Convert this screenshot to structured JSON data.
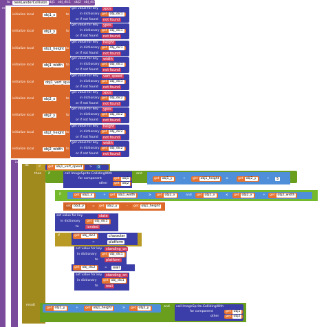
{
  "header": {
    "to_label": "to",
    "procedure_name": "newLanderCollision",
    "params": [
      "obj1",
      "obj_dic1",
      "obj2",
      "obj_dic2"
    ]
  },
  "result_label": "result",
  "in_label": "in",
  "do_label": "do",
  "if_label": "if",
  "then_label": "then",
  "else_if_label": "else if",
  "result_return_label": "result",
  "and_label": "and",
  "locals": [
    {
      "label": "initialize local",
      "name": "obj1_x",
      "to": "to",
      "key": "xpos",
      "dict": "obj_dic1",
      "nf": "not found"
    },
    {
      "label": "initialize local",
      "name": "obj1_y",
      "to": "to",
      "key": "ypos",
      "dict": "obj_dic1",
      "nf": "not found"
    },
    {
      "label": "initialize local",
      "name": "obj1_height",
      "to": "to",
      "key": "height",
      "dict": "obj_dic1",
      "nf": "not found"
    },
    {
      "label": "initialize local",
      "name": "obj1_width",
      "to": "to",
      "key": "width",
      "dict": "obj_dic1",
      "nf": "not found"
    },
    {
      "label": "initialize local",
      "name": "obj1_vert_speed",
      "to": "to",
      "key": "vert_speed",
      "dict": "obj_dic1",
      "nf": "not found"
    },
    {
      "label": "initialize local",
      "name": "obj2_x",
      "to": "to",
      "key": "xpos",
      "dict": "obj_dic2",
      "nf": "not found"
    },
    {
      "label": "initialize local",
      "name": "obj2_y",
      "to": "to",
      "key": "ypos",
      "dict": "obj_dic2",
      "nf": "not found"
    },
    {
      "label": "initialize local",
      "name": "obj2_height",
      "to": "to",
      "key": "height",
      "dict": "obj_dic2",
      "nf": "not found"
    },
    {
      "label": "initialize local",
      "name": "obj2_width",
      "to": "to",
      "key": "width",
      "dict": "obj_dic2",
      "nf": "not found"
    }
  ],
  "get_value": {
    "get_value_for_key": "get value for key",
    "in_dictionary": "in dictionary",
    "or_if_not_found": "or if not found"
  },
  "body": {
    "cond1": {
      "get": "get",
      "var": "obj1_vert_speed",
      "op": ">",
      "num": "0"
    },
    "colliding1": {
      "call": "call ImageSprite.CollidingWith",
      "for_component": "for component",
      "other": "other",
      "comp_var": "obj1",
      "other_var": "obj2"
    },
    "cmp1": {
      "var_a": "obj1_y",
      "plus": "+",
      "var_b": "obj1_height",
      "op": "≤",
      "var_c": "obj2_y",
      "plus2": "+",
      "num": "5"
    },
    "cmp2": {
      "var_a": "obj1_x",
      "plus": "+",
      "var_b": "obj1_width",
      "op": "≥",
      "var_c": "obj2_x",
      "op2": "and",
      "var_d": "obj1_x",
      "op3": "≤",
      "var_e": "obj2_x",
      "plus2": "+",
      "var_f": "obj2_width"
    },
    "then_set": {
      "var": "obj1_y",
      "op": "=",
      "var_b": "obj2_y",
      "minus": "-",
      "var_c": "obj1_height"
    },
    "set_value": {
      "label": "set value for key",
      "key": "state",
      "in_dictionary": "in dictionary",
      "dict": "obj_dic1",
      "to": "to",
      "val": "landed"
    },
    "inner_if": {
      "get": "get",
      "dict": "obj_dic2",
      "key": "character",
      "op": "=",
      "val": "platform"
    },
    "inner_then": {
      "label": "set value for key",
      "key": "standing_on",
      "in_dictionary": "in dictionary",
      "dict": "obj_dic1",
      "to": "to",
      "val": "platform"
    },
    "inner_else_if": {
      "get": "get",
      "dict": "obj_dic2",
      "op": "=",
      "val": "wall"
    },
    "inner_then2": {
      "label": "set value for key",
      "key": "standing_on",
      "in_dictionary": "in dictionary",
      "dict": "obj_dic1",
      "to": "to",
      "val": "wall"
    },
    "result_expr": {
      "var_a": "obj1_y",
      "plus": "+",
      "var_b": "obj1_height",
      "op": "≥",
      "var_c": "obj2_y",
      "and": "and",
      "call": "call ImageSprite.CollidingWith",
      "for_component": "for component",
      "other": "other",
      "comp_var": "obj1",
      "other_var": "obj2"
    }
  }
}
